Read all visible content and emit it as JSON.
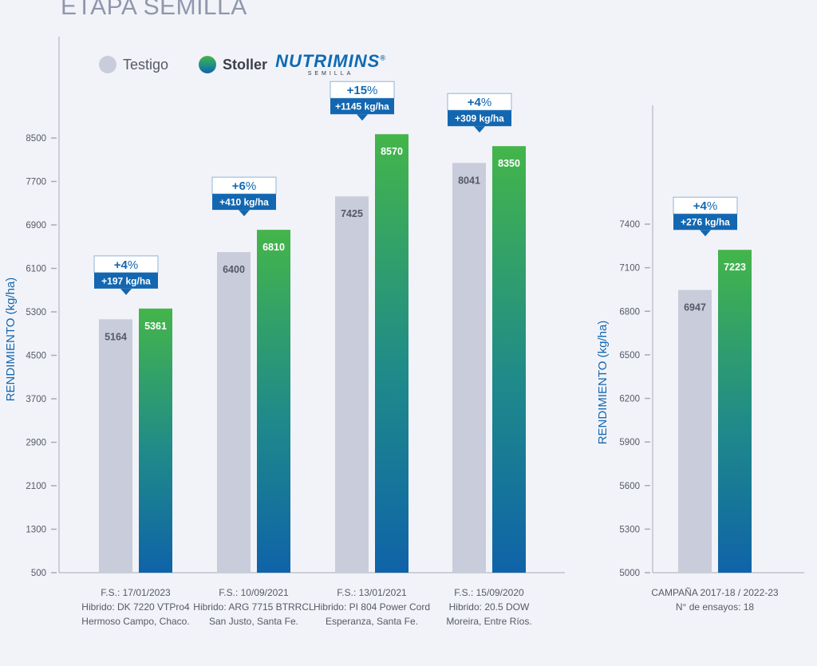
{
  "title": "ETAPA SEMILLA",
  "legend": {
    "testigo": "Testigo",
    "stoller": "Stoller",
    "brand": "NUTRIMINS",
    "brand_sub": "SEMILLA",
    "brand_mark": "®"
  },
  "colors": {
    "testigo": "#c9ccdb",
    "green_top": "#44b54a",
    "green_mid": "#1f8a8a",
    "blue_bottom": "#0f63a8",
    "badge_blue": "#1367b0",
    "axis": "#a7abb8",
    "axis_label": "#1367b0"
  },
  "chart_data": [
    {
      "type": "bar",
      "ylabel": "RENDIMIENTO (kg/ha)",
      "ylim": [
        500,
        8500
      ],
      "yticks": [
        500,
        1300,
        2100,
        2900,
        3700,
        4500,
        5300,
        6100,
        6900,
        7700,
        8500
      ],
      "series": [
        {
          "name": "Testigo",
          "values": [
            5164,
            6400,
            7425,
            8041
          ]
        },
        {
          "name": "Stoller NUTRIMINS",
          "values": [
            5361,
            6810,
            8570,
            8350
          ]
        }
      ],
      "badges": [
        {
          "pct_num": "+4",
          "pct_sym": "%",
          "kg": "+197 kg/ha"
        },
        {
          "pct_num": "+6",
          "pct_sym": "%",
          "kg": "+410 kg/ha"
        },
        {
          "pct_num": "+15",
          "pct_sym": "%",
          "kg": "+1145 kg/ha"
        },
        {
          "pct_num": "+4",
          "pct_sym": "%",
          "kg": "+309 kg/ha"
        }
      ],
      "categories": [
        [
          "F.S.: 17/01/2023",
          "Hibrido: DK 7220 VTPro4",
          "Hermoso Campo, Chaco."
        ],
        [
          "F.S.: 10/09/2021",
          "Hibrido: ARG 7715 BTRRCL",
          "San Justo, Santa Fe."
        ],
        [
          "F.S.: 13/01/2021",
          "Hibrido: PI 804 Power Cord",
          "Esperanza, Santa Fe."
        ],
        [
          "F.S.: 15/09/2020",
          "Hibrido: 20.5 DOW",
          "Moreira, Entre Ríos."
        ]
      ]
    },
    {
      "type": "bar",
      "ylabel": "RENDIMIENTO (kg/ha)",
      "ylim": [
        5000,
        7400
      ],
      "yticks": [
        5000,
        5300,
        5600,
        5900,
        6200,
        6500,
        6800,
        7100,
        7400
      ],
      "series": [
        {
          "name": "Testigo",
          "values": [
            6947
          ]
        },
        {
          "name": "Stoller NUTRIMINS",
          "values": [
            7223
          ]
        }
      ],
      "badges": [
        {
          "pct_num": "+4",
          "pct_sym": "%",
          "kg": "+276 kg/ha"
        }
      ],
      "categories": [
        [
          "CAMPAÑA 2017-18 / 2022-23",
          "N° de ensayos: 18"
        ]
      ]
    }
  ]
}
